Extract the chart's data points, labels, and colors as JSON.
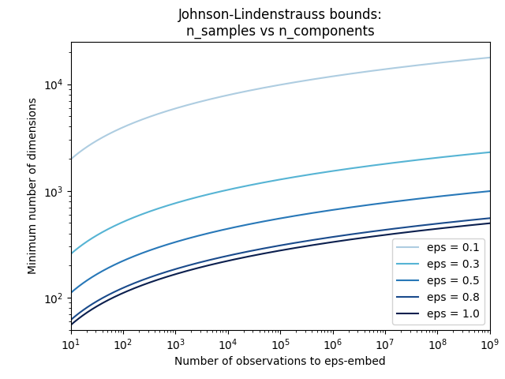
{
  "title": "Johnson-Lindenstrauss bounds:\nn_samples vs n_components",
  "xlabel": "Number of observations to eps-embed",
  "ylabel": "Minimum number of dimensions",
  "eps_values": [
    0.1,
    0.3,
    0.5,
    0.8,
    1.0
  ],
  "eps_labels": [
    "eps = 0.1",
    "eps = 0.3",
    "eps = 0.5",
    "eps = 0.8",
    "eps = 1.0"
  ],
  "colors": [
    "#aecde1",
    "#56b4d4",
    "#2878b8",
    "#1a4b8c",
    "#0b1f4e"
  ],
  "ylim": [
    50,
    25000
  ],
  "xlim": [
    10,
    1000000000.0
  ],
  "figsize": [
    6.4,
    4.8
  ],
  "dpi": 100,
  "legend_loc": "lower right"
}
